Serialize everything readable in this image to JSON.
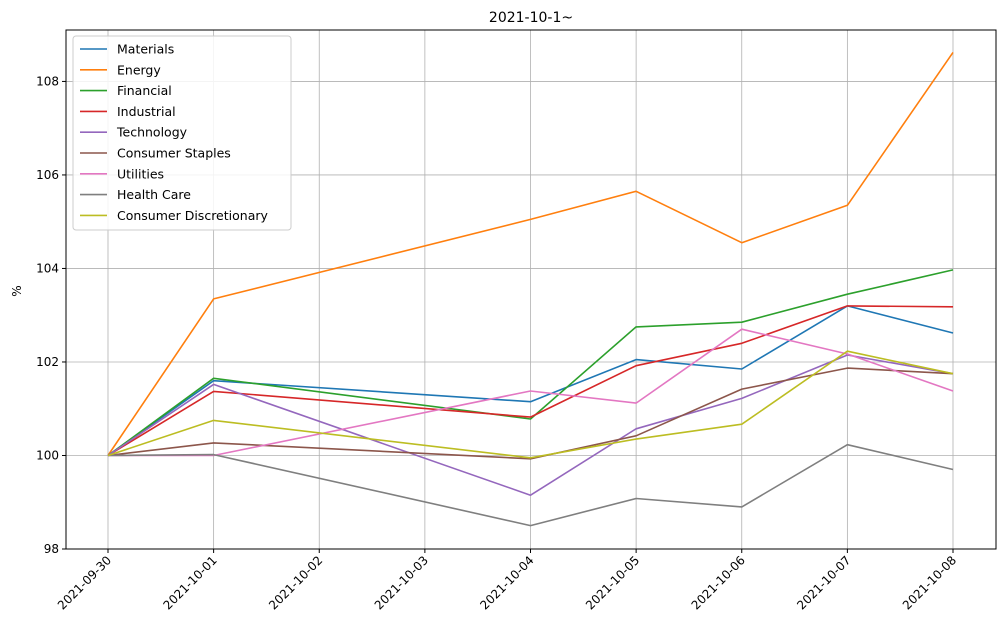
{
  "chart_data": {
    "type": "line",
    "title": "2021-10-1~",
    "xlabel": "",
    "ylabel": "%",
    "x": [
      "2021-09-30",
      "2021-10-01",
      "2021-10-02",
      "2021-10-03",
      "2021-10-04",
      "2021-10-05",
      "2021-10-06",
      "2021-10-07",
      "2021-10-08"
    ],
    "ylim": [
      98,
      109.1
    ],
    "yticks": [
      98,
      100,
      102,
      104,
      106,
      108
    ],
    "grid": true,
    "legend_position": "top-left",
    "series": [
      {
        "name": "Materials",
        "color": "#1f77b4",
        "values": [
          100,
          101.6,
          null,
          null,
          101.15,
          102.05,
          101.85,
          103.2,
          102.62
        ]
      },
      {
        "name": "Energy",
        "color": "#ff7f0e",
        "values": [
          100,
          103.35,
          null,
          null,
          105.05,
          105.65,
          104.55,
          105.35,
          108.62
        ]
      },
      {
        "name": "Financial",
        "color": "#2ca02c",
        "values": [
          100,
          101.65,
          null,
          null,
          100.78,
          102.75,
          102.85,
          103.45,
          103.97
        ]
      },
      {
        "name": "Industrial",
        "color": "#d62728",
        "values": [
          100,
          101.37,
          null,
          null,
          100.82,
          101.92,
          102.4,
          103.2,
          103.18
        ]
      },
      {
        "name": "Technology",
        "color": "#9467bd",
        "values": [
          100,
          101.52,
          null,
          null,
          99.15,
          100.57,
          101.22,
          102.15,
          101.75
        ]
      },
      {
        "name": "Consumer Staples",
        "color": "#8c564b",
        "values": [
          100,
          100.27,
          null,
          null,
          99.93,
          100.42,
          101.42,
          101.87,
          101.75
        ]
      },
      {
        "name": "Utilities",
        "color": "#e377c2",
        "values": [
          100,
          100.0,
          null,
          null,
          101.38,
          101.12,
          102.7,
          102.17,
          101.38
        ]
      },
      {
        "name": "Health Care",
        "color": "#7f7f7f",
        "values": [
          100,
          100.02,
          null,
          null,
          98.5,
          99.08,
          98.9,
          100.23,
          99.7
        ]
      },
      {
        "name": "Consumer Discretionary",
        "color": "#bcbd22",
        "values": [
          100,
          100.75,
          null,
          null,
          99.95,
          100.35,
          100.67,
          102.23,
          101.75
        ]
      }
    ]
  }
}
